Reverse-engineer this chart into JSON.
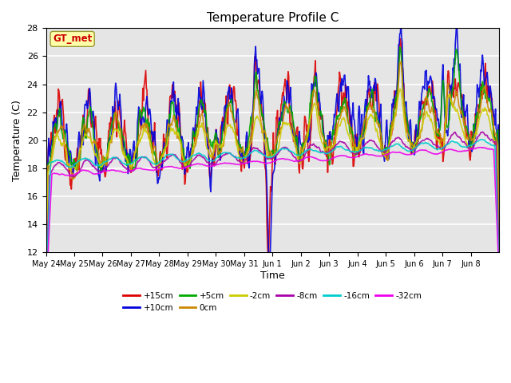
{
  "title": "Temperature Profile C",
  "xlabel": "Time",
  "ylabel": "Temperature (C)",
  "ylim": [
    12,
    28
  ],
  "n_days": 16,
  "background_color": "#e5e5e5",
  "series": [
    {
      "label": "+15cm",
      "color": "#dd0000",
      "lw": 1.2
    },
    {
      "label": "+10cm",
      "color": "#0000dd",
      "lw": 1.2
    },
    {
      "label": "+5cm",
      "color": "#00aa00",
      "lw": 1.2
    },
    {
      "label": "0cm",
      "color": "#cc8800",
      "lw": 1.2
    },
    {
      "label": "-2cm",
      "color": "#cccc00",
      "lw": 1.2
    },
    {
      "label": "-8cm",
      "color": "#aa00aa",
      "lw": 1.2
    },
    {
      "label": "-16cm",
      "color": "#00cccc",
      "lw": 1.2
    },
    {
      "label": "-32cm",
      "color": "#ee00ee",
      "lw": 1.2
    }
  ],
  "gt_box_fc": "#ffffaa",
  "gt_box_ec": "#999933",
  "gt_text_color": "#cc0000",
  "yticks": [
    12,
    14,
    16,
    18,
    20,
    22,
    24,
    26,
    28
  ],
  "xtick_labels": [
    "May 24",
    "May 25",
    "May 26",
    "May 27",
    "May 28",
    "May 29",
    "May 30",
    "May 31",
    "Jun 1",
    "Jun 2",
    "Jun 3",
    "Jun 4",
    "Jun 5",
    "Jun 6",
    "Jun 7",
    "Jun 8"
  ]
}
